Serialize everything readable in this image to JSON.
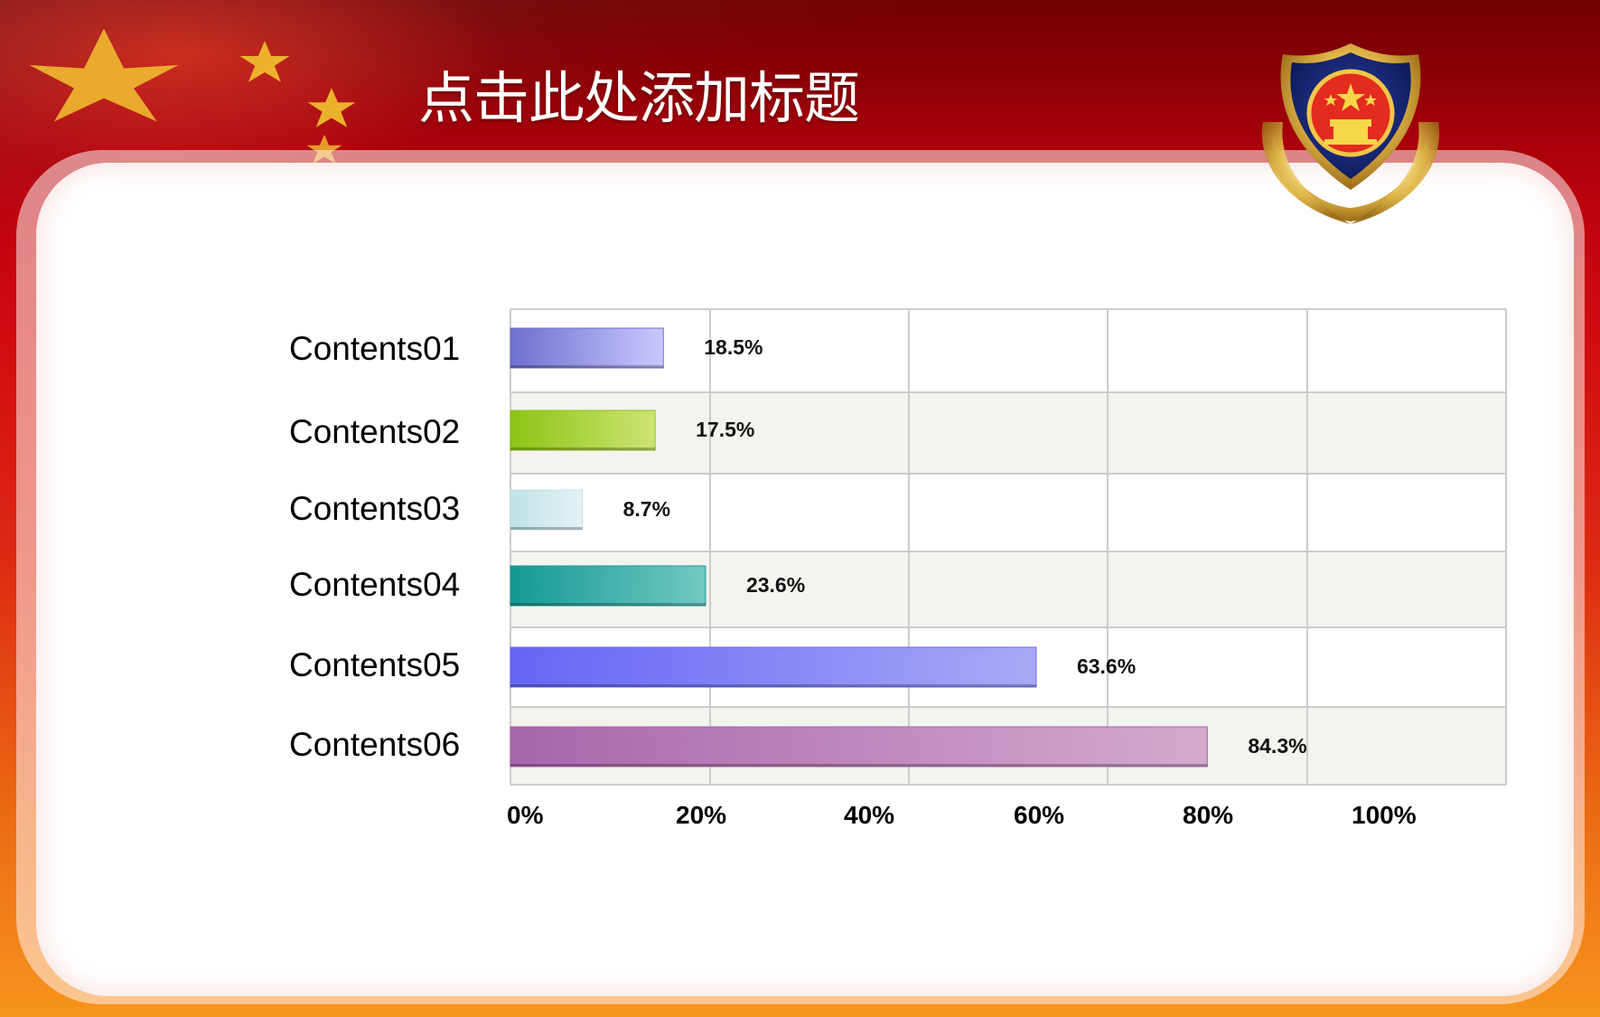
{
  "slide": {
    "title": "点击此处添加标题"
  },
  "colors": {
    "background_top": "#9a0008",
    "background_bottom": "#f6951c",
    "grid_line": "#cccccc",
    "band_fill": "#f3f3ef"
  },
  "chart_data": {
    "type": "bar",
    "orientation": "horizontal",
    "categories": [
      "Contents01",
      "Contents02",
      "Contents03",
      "Contents04",
      "Contents05",
      "Contents06"
    ],
    "values": [
      18.5,
      17.5,
      8.7,
      23.6,
      63.6,
      84.3
    ],
    "value_labels": [
      "18.5%",
      "17.5%",
      "8.7%",
      "23.6%",
      "63.6%",
      "84.3%"
    ],
    "bar_colors": [
      [
        "#6f6fcf",
        "#c9c9ff"
      ],
      [
        "#8cc414",
        "#cde474"
      ],
      [
        "#c0e2e6",
        "#e4f2f4"
      ],
      [
        "#159892",
        "#72c9c3"
      ],
      [
        "#6565f6",
        "#a9a9f6"
      ],
      [
        "#a966aa",
        "#d4aacf"
      ]
    ],
    "x_ticks": [
      "0%",
      "20%",
      "40%",
      "60%",
      "80%",
      "100%"
    ],
    "xlim": [
      0,
      100
    ],
    "grid": true,
    "legend": "none"
  }
}
